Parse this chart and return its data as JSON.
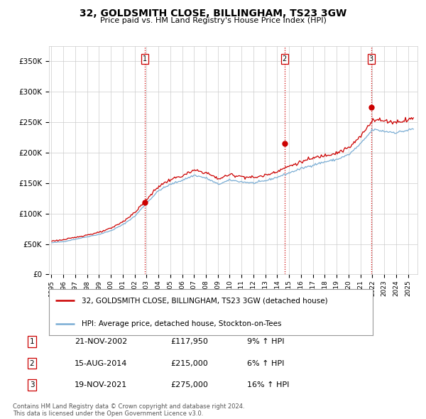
{
  "title": "32, GOLDSMITH CLOSE, BILLINGHAM, TS23 3GW",
  "subtitle": "Price paid vs. HM Land Registry's House Price Index (HPI)",
  "ylabel_ticks": [
    "£0",
    "£50K",
    "£100K",
    "£150K",
    "£200K",
    "£250K",
    "£300K",
    "£350K"
  ],
  "ytick_values": [
    0,
    50000,
    100000,
    150000,
    200000,
    250000,
    300000,
    350000
  ],
  "ylim": [
    0,
    375000
  ],
  "xlim_start": 1994.8,
  "xlim_end": 2025.8,
  "sale_dates": [
    2002.89,
    2014.62,
    2021.89
  ],
  "sale_prices": [
    117950,
    215000,
    275000
  ],
  "sale_labels": [
    "1",
    "2",
    "3"
  ],
  "vline_color": "#cc0000",
  "sale_marker_color": "#cc0000",
  "red_line_color": "#cc0000",
  "blue_line_color": "#7aadd4",
  "legend_red_label": "32, GOLDSMITH CLOSE, BILLINGHAM, TS23 3GW (detached house)",
  "legend_blue_label": "HPI: Average price, detached house, Stockton-on-Tees",
  "table_data": [
    [
      "1",
      "21-NOV-2002",
      "£117,950",
      "9% ↑ HPI"
    ],
    [
      "2",
      "15-AUG-2014",
      "£215,000",
      "6% ↑ HPI"
    ],
    [
      "3",
      "19-NOV-2021",
      "£275,000",
      "16% ↑ HPI"
    ]
  ],
  "footer": "Contains HM Land Registry data © Crown copyright and database right 2024.\nThis data is licensed under the Open Government Licence v3.0.",
  "background_color": "#ffffff",
  "grid_color": "#cccccc",
  "xtick_years": [
    1995,
    1996,
    1997,
    1998,
    1999,
    2000,
    2001,
    2002,
    2003,
    2004,
    2005,
    2006,
    2007,
    2008,
    2009,
    2010,
    2011,
    2012,
    2013,
    2014,
    2015,
    2016,
    2017,
    2018,
    2019,
    2020,
    2021,
    2022,
    2023,
    2024,
    2025
  ],
  "hpi_yearly": {
    "1995": 52000,
    "1996": 54000,
    "1997": 58000,
    "1998": 62000,
    "1999": 66000,
    "2000": 72000,
    "2001": 82000,
    "2002": 96000,
    "2003": 118000,
    "2004": 138000,
    "2005": 148000,
    "2006": 155000,
    "2007": 163000,
    "2008": 158000,
    "2009": 148000,
    "2010": 155000,
    "2011": 152000,
    "2012": 150000,
    "2013": 154000,
    "2014": 160000,
    "2015": 167000,
    "2016": 174000,
    "2017": 180000,
    "2018": 185000,
    "2019": 189000,
    "2020": 197000,
    "2021": 215000,
    "2022": 238000,
    "2023": 235000,
    "2024": 233000,
    "2025": 237000
  },
  "prop_yearly": {
    "1995": 55000,
    "1996": 57000,
    "1997": 61000,
    "1998": 65000,
    "1999": 69000,
    "2000": 76000,
    "2001": 87000,
    "2002": 102000,
    "2003": 124000,
    "2004": 145000,
    "2005": 156000,
    "2006": 162000,
    "2007": 171000,
    "2008": 167000,
    "2009": 157000,
    "2010": 164000,
    "2011": 161000,
    "2012": 159000,
    "2013": 163000,
    "2014": 170000,
    "2015": 178000,
    "2016": 185000,
    "2017": 191000,
    "2018": 196000,
    "2019": 200000,
    "2020": 208000,
    "2021": 227000,
    "2022": 255000,
    "2023": 252000,
    "2024": 250000,
    "2025": 255000
  }
}
